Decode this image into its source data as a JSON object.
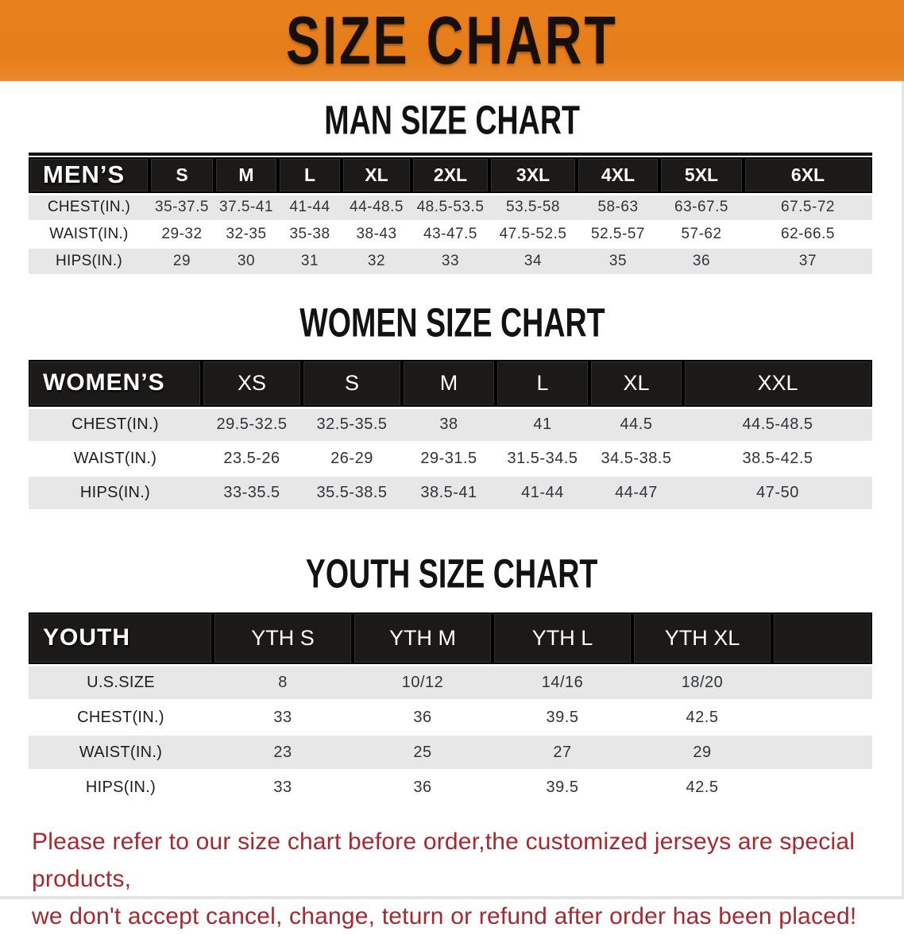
{
  "banner": {
    "title": "SIZE CHART"
  },
  "colors": {
    "banner_orange": "#e67d1a",
    "header_black": "#1b1a19",
    "row_gray": "#e7e7e7",
    "row_white": "#ffffff",
    "footer_red": "#a8292d"
  },
  "sections": [
    {
      "id": "mens",
      "heading": "MAN SIZE CHART",
      "table": {
        "corner_label": "MEN’S",
        "columns": [
          "S",
          "M",
          "L",
          "XL",
          "2XL",
          "3XL",
          "4XL",
          "5XL",
          "6XL"
        ],
        "rows": [
          {
            "label": "CHEST(IN.)",
            "values": [
              "35-37.5",
              "37.5-41",
              "41-44",
              "44-48.5",
              "48.5-53.5",
              "53.5-58",
              "58-63",
              "63-67.5",
              "67.5-72"
            ]
          },
          {
            "label": "WAIST(IN.)",
            "values": [
              "29-32",
              "32-35",
              "35-38",
              "38-43",
              "43-47.5",
              "47.5-52.5",
              "52.5-57",
              "57-62",
              "62-66.5"
            ]
          },
          {
            "label": "HIPS(IN.)",
            "values": [
              "29",
              "30",
              "31",
              "32",
              "33",
              "34",
              "35",
              "36",
              "37"
            ]
          }
        ]
      }
    },
    {
      "id": "womens",
      "heading": "WOMEN SIZE CHART",
      "table": {
        "corner_label": "WOMEN’S",
        "columns": [
          "XS",
          "S",
          "M",
          "L",
          "XL",
          "XXL"
        ],
        "rows": [
          {
            "label": "CHEST(IN.)",
            "values": [
              "29.5-32.5",
              "32.5-35.5",
              "38",
              "41",
              "44.5",
              "44.5-48.5"
            ]
          },
          {
            "label": "WAIST(IN.)",
            "values": [
              "23.5-26",
              "26-29",
              "29-31.5",
              "31.5-34.5",
              "34.5-38.5",
              "38.5-42.5"
            ]
          },
          {
            "label": "HIPS(IN.)",
            "values": [
              "33-35.5",
              "35.5-38.5",
              "38.5-41",
              "41-44",
              "44-47",
              "47-50"
            ]
          }
        ]
      }
    },
    {
      "id": "youth",
      "heading": "YOUTH SIZE CHART",
      "table": {
        "corner_label": "YOUTH",
        "columns": [
          "YTH S",
          "YTH M",
          "YTH L",
          "YTH XL"
        ],
        "rows": [
          {
            "label": "U.S.SIZE",
            "values": [
              "8",
              "10/12",
              "14/16",
              "18/20"
            ]
          },
          {
            "label": "CHEST(IN.)",
            "values": [
              "33",
              "36",
              "39.5",
              "42.5"
            ]
          },
          {
            "label": "WAIST(IN.)",
            "values": [
              "23",
              "25",
              "27",
              "29"
            ]
          },
          {
            "label": "HIPS(IN.)",
            "values": [
              "33",
              "36",
              "39.5",
              "42.5"
            ]
          }
        ]
      }
    }
  ],
  "footer": {
    "line1": "Please refer to our size chart before order,the customized jerseys are special products,",
    "line2": "we don't accept cancel, change, teturn or refund after order has been placed!"
  }
}
